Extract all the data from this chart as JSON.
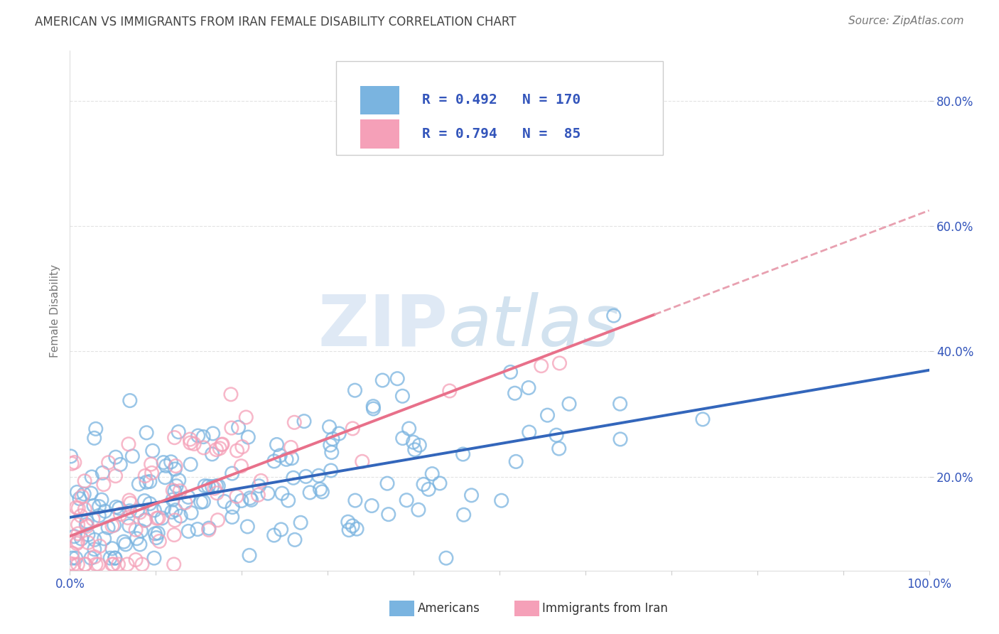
{
  "title": "AMERICAN VS IMMIGRANTS FROM IRAN FEMALE DISABILITY CORRELATION CHART",
  "source": "Source: ZipAtlas.com",
  "ylabel": "Female Disability",
  "xlim": [
    0.0,
    1.0
  ],
  "ylim": [
    0.05,
    0.88
  ],
  "american_color": "#7ab4e0",
  "iran_color": "#f5a0b8",
  "american_R": 0.492,
  "american_N": 170,
  "iran_R": 0.794,
  "iran_N": 85,
  "background_color": "#ffffff",
  "grid_color": "#dddddd",
  "watermark_color": "#c5d8ee",
  "legend_label_american": "Americans",
  "legend_label_iran": "Immigrants from Iran",
  "american_intercept": 0.135,
  "american_slope": 0.235,
  "iran_intercept": 0.105,
  "iran_slope": 0.52,
  "blue_text_color": "#3355bb",
  "axis_label_color": "#3355bb"
}
